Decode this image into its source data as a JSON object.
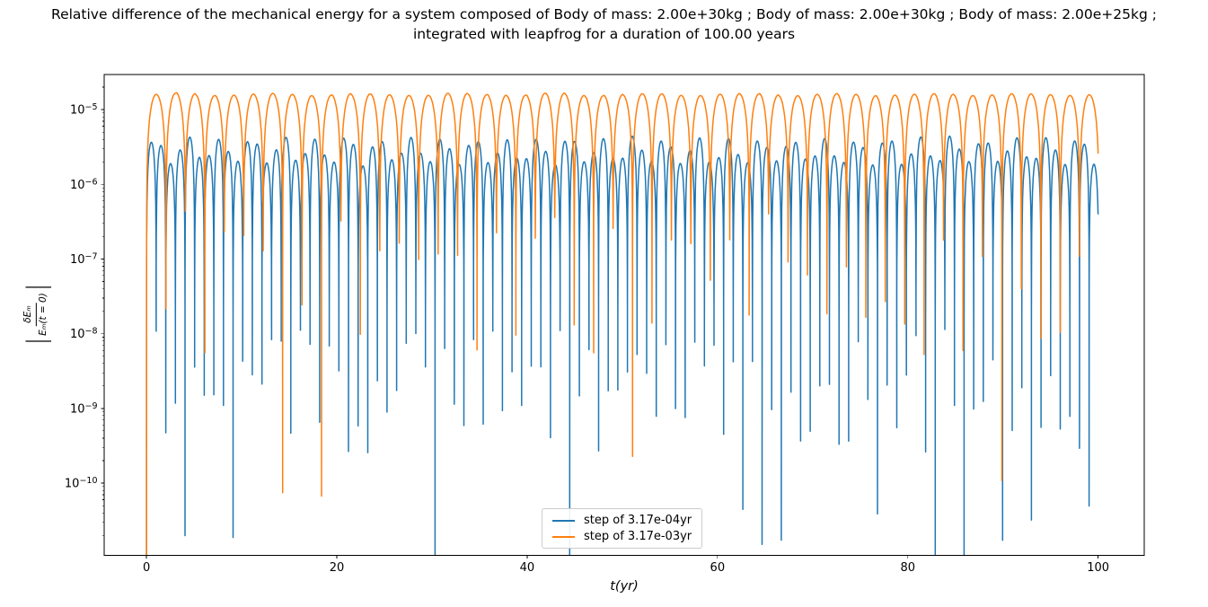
{
  "chart_data": {
    "type": "line",
    "title": "Relative difference of the mechanical energy for a system composed of Body of mass: 2.00e+30kg ; Body of mass: 2.00e+30kg ; Body of mass: 2.00e+25kg ; integrated with leapfrog for a duration of 100.00 years",
    "title_line1": "Relative difference of the mechanical energy for a system composed of Body of mass: 2.00e+30kg ; Body of mass: 2.00e+30kg ; Body of mass: 2.00e+25kg ;",
    "title_line2": "integrated with leapfrog for a duration of 100.00 years",
    "xlabel": "t(yr)",
    "ylabel": "|δEₘ/Eₘ(t = 0)|",
    "ylabel_parts": {
      "bar": "|",
      "numerator": "δEₘ",
      "denominator": "Eₘ(t = 0)"
    },
    "xscale": "linear",
    "yscale": "log",
    "grid": false,
    "xlim": [
      -4.45,
      104.85
    ],
    "ylim": [
      1.08e-11,
      2.95e-05
    ],
    "x_ticks": [
      0,
      20,
      40,
      60,
      80,
      100
    ],
    "y_tick_exponents": [
      -5,
      -6,
      -7,
      -8,
      -9,
      -10
    ],
    "y_tick_labels": [
      "10⁻⁵",
      "10⁻⁶",
      "10⁻⁷",
      "10⁻⁸",
      "10⁻⁹",
      "10⁻¹⁰"
    ],
    "legend": {
      "location": "lower center",
      "entries": [
        "step of 3.17e-04yr",
        "step of 3.17e-03yr"
      ]
    },
    "series": [
      {
        "name": "step of 3.17e-04yr",
        "color": "#1f77b4",
        "line_width": 1.5,
        "summary": {
          "shape": "absolute value of an oscillating energy error on a log scale: repeated arcs with cusps plunging to near zero",
          "oscillation_period_yr": 1.01,
          "arc_peak_value_range": [
            1.8e-06,
            4.5e-06
          ],
          "cusp_minimum_range": [
            5e-12,
            1.6e-08
          ],
          "starts_at": {
            "t": 0,
            "value": 0
          },
          "t_end": 100
        },
        "model": {
          "kind": "abs_sine_arcs",
          "period": 1.0108,
          "t_start": 0,
          "t_end": 100,
          "peak_exp_base": -5.55,
          "peak_exp_amp": 0.17,
          "peak_freq": 1.9,
          "peak_phase": 0.6,
          "peak_noise": 0.07,
          "dip_exp_hi": -7.9,
          "dip_exp_lo": -9.6,
          "deep_dip_prob": 0.1,
          "deep_exp_hi": -10.2,
          "deep_exp_lo": -11.3,
          "first_dip_exp": -12,
          "seed": 1
        }
      },
      {
        "name": "step of 3.17e-03yr",
        "color": "#ff7f0e",
        "line_width": 1.5,
        "summary": {
          "shape": "absolute value of an oscillating energy error on a log scale: taller, wider arcs with cusps",
          "oscillation_period_yr": 2.02,
          "arc_peak_value_range": [
            1.5e-05,
            1.66e-05
          ],
          "cusp_minimum_range": [
            2e-11,
            5e-07
          ],
          "starts_at": {
            "t": 0,
            "value": 0
          },
          "t_end": 100
        },
        "model": {
          "kind": "abs_sine_arcs",
          "period": 2.043,
          "t_start": 0,
          "t_end": 100,
          "peak_exp_base": -4.8,
          "peak_exp_amp": 0.015,
          "peak_freq": 1.3,
          "peak_phase": 0.2,
          "peak_noise": 0.01,
          "dip_exp_hi": -6.3,
          "dip_exp_lo": -8.3,
          "deep_dip_prob": 0.09,
          "deep_exp_hi": -9.6,
          "deep_exp_lo": -10.7,
          "first_dip_exp": -12,
          "seed": 2
        }
      }
    ]
  }
}
